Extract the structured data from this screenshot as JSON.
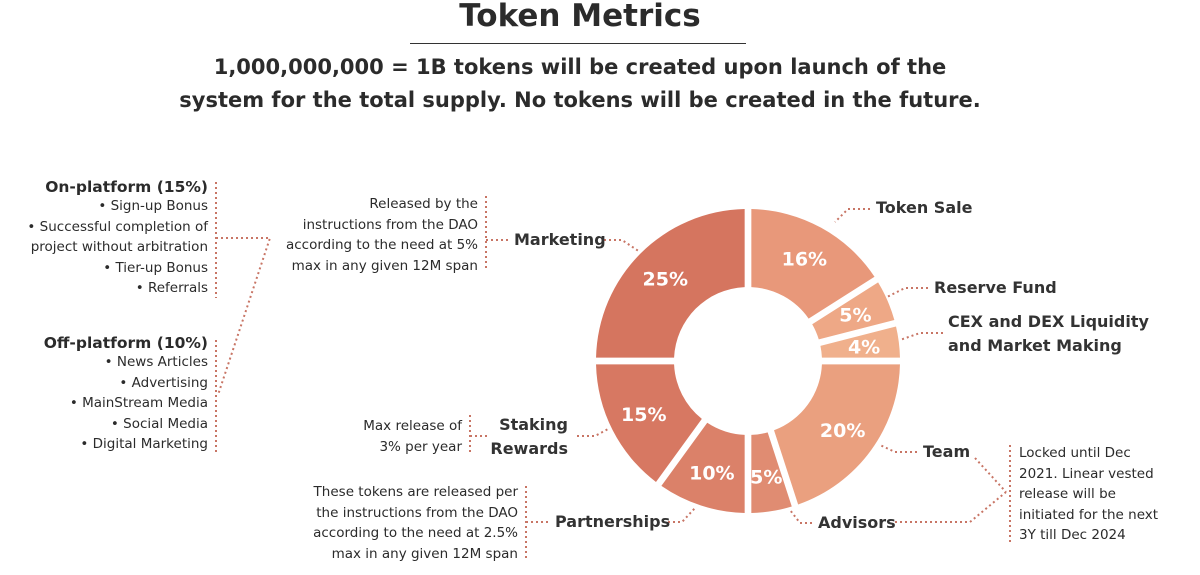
{
  "title": "Token Metrics",
  "subtitle_lines": [
    "1,000,000,000 = 1B tokens will be created upon launch of the",
    "system for the total supply. No tokens will be created in the future."
  ],
  "colors": {
    "accent_dark": "#d5735d",
    "accent_light": "#f1b48e",
    "dots": "#c87565",
    "text": "#2b2b2b"
  },
  "chart_data": {
    "type": "pie",
    "donut": true,
    "categories": [
      "Token Sale",
      "Reserve Fund",
      "CEX and DEX Liquidity and Market Making",
      "Team",
      "Advisors",
      "Partnerships",
      "Staking Rewards",
      "Marketing"
    ],
    "values": [
      16,
      5,
      4,
      20,
      5,
      10,
      15,
      25
    ],
    "data_labels": [
      "16%",
      "5%",
      "4%",
      "20%",
      "5%",
      "10%",
      "15%",
      "25%"
    ],
    "colors": [
      "#e8987a",
      "#eea886",
      "#f0b08c",
      "#eaa07f",
      "#e08c72",
      "#db8169",
      "#d77862",
      "#d5755f"
    ]
  },
  "labels": {
    "token_sale": "Token Sale",
    "reserve_fund": "Reserve Fund",
    "cex": [
      "CEX and DEX Liquidity",
      "and Market Making"
    ],
    "team": "Team",
    "advisors": "Advisors",
    "partnerships": "Partnerships",
    "staking": [
      "Staking",
      "Rewards"
    ],
    "marketing": "Marketing"
  },
  "notes": {
    "marketing": [
      "Released by the",
      "instructions from the DAO",
      "according to the need at 5%",
      "max in any given 12M span"
    ],
    "staking": [
      "Max release of",
      "3% per year"
    ],
    "partnerships": [
      "These tokens are released per",
      "the instructions from the DAO",
      "according to the need at 2.5%",
      "max in any given 12M span"
    ],
    "team_advisors": [
      "Locked until Dec",
      "2021. Linear vested",
      "release will be",
      "initiated for the next",
      "3Y till Dec 2024"
    ]
  },
  "marketing_breakdown": {
    "on_platform": {
      "heading": "On-platform (15%)",
      "items": [
        "• Sign-up Bonus",
        "• Successful completion of",
        "project without arbitration",
        "• Tier-up Bonus",
        "• Referrals"
      ]
    },
    "off_platform": {
      "heading": "Off-platform (10%)",
      "items": [
        "• News Articles",
        "• Advertising",
        "• MainStream Media",
        "• Social Media",
        "• Digital Marketing"
      ]
    }
  }
}
